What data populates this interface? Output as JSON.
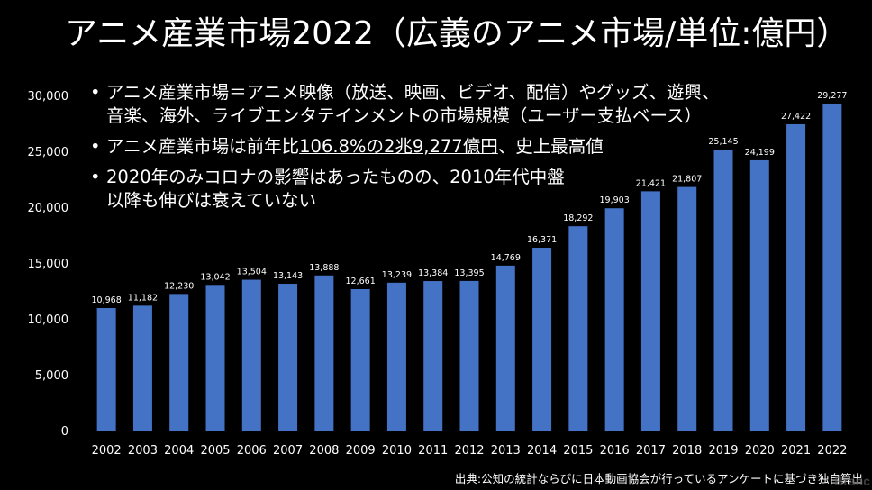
{
  "title": "アニメ産業市場2022（広義のアニメ市場/単位:億円）",
  "bullets": [
    {
      "line1": "アニメ産業市場＝アニメ映像（放送、映画、ビデオ、配信）やグッズ、遊興、",
      "line2": "音楽、海外、ライブエンタテインメントの市場規模（ユーザー支払ベース）"
    },
    {
      "pre": "アニメ産業市場は前年比",
      "highlight": "106.8%の2兆9,277億円",
      "post": "、史上最高値"
    },
    {
      "line1": "2020年のみコロナの影響はあったものの、2010年代中盤",
      "line2": "以降も伸びは衰えていない"
    }
  ],
  "source": "出典:公知の統計ならびに日本動画協会が行っているアンケートに基づき独自算出",
  "watermark": "Branc",
  "colors": {
    "background": "#000000",
    "bar": "#4472c4",
    "text": "#ffffff"
  },
  "chart_data": {
    "type": "bar",
    "categories": [
      "2002",
      "2003",
      "2004",
      "2005",
      "2006",
      "2007",
      "2008",
      "2009",
      "2010",
      "2011",
      "2012",
      "2013",
      "2014",
      "2015",
      "2016",
      "2017",
      "2018",
      "2019",
      "2020",
      "2021",
      "2022"
    ],
    "values": [
      10968,
      11182,
      12230,
      13042,
      13504,
      13143,
      13888,
      12661,
      13239,
      13384,
      13395,
      14769,
      16371,
      18292,
      19903,
      21421,
      21807,
      25145,
      24199,
      27422,
      29277
    ],
    "data_labels": [
      "10,968",
      "11,182",
      "12,230",
      "13,042",
      "13,504",
      "13,143",
      "13,888",
      "12,661",
      "13,239",
      "13,384",
      "13,395",
      "14,769",
      "16,371",
      "18,292",
      "19,903",
      "21,421",
      "21,807",
      "25,145",
      "24,199",
      "27,422",
      "29,277"
    ],
    "yticks": [
      0,
      5000,
      10000,
      15000,
      20000,
      25000,
      30000
    ],
    "ytick_labels": [
      "0",
      "5,000",
      "10,000",
      "15,000",
      "20,000",
      "25,000",
      "30,000"
    ],
    "ylim": [
      0,
      30000
    ],
    "grid": false,
    "legend": "none"
  }
}
